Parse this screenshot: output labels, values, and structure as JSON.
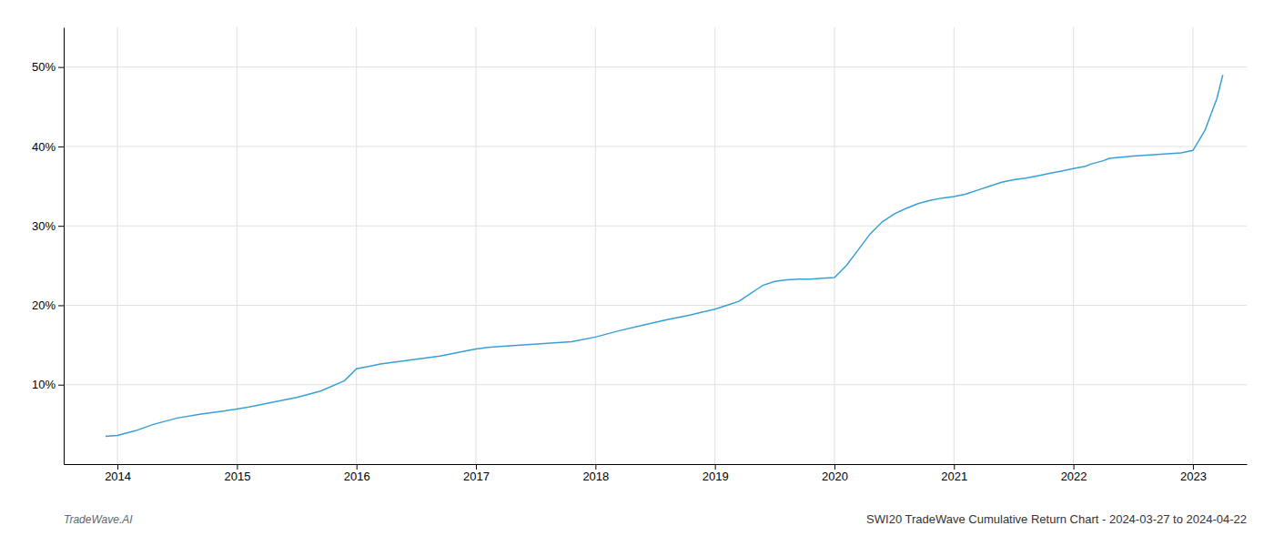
{
  "chart_data": {
    "type": "line",
    "title": "SWI20 TradeWave Cumulative Return Chart - 2024-03-27 to 2024-04-22",
    "annotations": [
      "TradeWave.AI"
    ],
    "color": "#3a9fd6",
    "x": [
      2013.9,
      2014.0,
      2014.15,
      2014.3,
      2014.5,
      2014.7,
      2014.9,
      2015.1,
      2015.3,
      2015.5,
      2015.7,
      2015.9,
      2016.0,
      2016.1,
      2016.2,
      2016.3,
      2016.5,
      2016.7,
      2016.9,
      2017.0,
      2017.1,
      2017.2,
      2017.4,
      2017.6,
      2017.8,
      2018.0,
      2018.2,
      2018.4,
      2018.6,
      2018.8,
      2019.0,
      2019.1,
      2019.2,
      2019.3,
      2019.35,
      2019.4,
      2019.5,
      2019.6,
      2019.7,
      2019.8,
      2019.9,
      2020.0,
      2020.1,
      2020.2,
      2020.3,
      2020.4,
      2020.5,
      2020.6,
      2020.7,
      2020.8,
      2020.9,
      2021.0,
      2021.1,
      2021.2,
      2021.3,
      2021.4,
      2021.5,
      2021.6,
      2021.7,
      2021.8,
      2021.9,
      2022.0,
      2022.1,
      2022.15,
      2022.2,
      2022.25,
      2022.3,
      2022.5,
      2022.7,
      2022.9,
      2023.0,
      2023.1,
      2023.2,
      2023.25
    ],
    "values": [
      3.5,
      3.6,
      4.2,
      5.0,
      5.8,
      6.3,
      6.7,
      7.2,
      7.8,
      8.4,
      9.2,
      10.5,
      12.0,
      12.3,
      12.6,
      12.8,
      13.2,
      13.6,
      14.2,
      14.5,
      14.7,
      14.8,
      15.0,
      15.2,
      15.4,
      16.0,
      16.8,
      17.5,
      18.2,
      18.8,
      19.5,
      20.0,
      20.5,
      21.5,
      22.0,
      22.5,
      23.0,
      23.2,
      23.3,
      23.3,
      23.4,
      23.5,
      25.0,
      27.0,
      29.0,
      30.5,
      31.5,
      32.2,
      32.8,
      33.2,
      33.5,
      33.7,
      34.0,
      34.5,
      35.0,
      35.5,
      35.8,
      36.0,
      36.3,
      36.6,
      36.9,
      37.2,
      37.5,
      37.8,
      38.0,
      38.2,
      38.5,
      38.8,
      39.0,
      39.2,
      39.5,
      42.0,
      46.0,
      49.0
    ],
    "xlim": [
      2013.55,
      2023.45
    ],
    "ylim": [
      0,
      55
    ],
    "xticks": [
      2014,
      2015,
      2016,
      2017,
      2018,
      2019,
      2020,
      2021,
      2022,
      2023
    ],
    "yticks": [
      {
        "value": 10,
        "label": "10%"
      },
      {
        "value": 20,
        "label": "20%"
      },
      {
        "value": 30,
        "label": "30%"
      },
      {
        "value": 40,
        "label": "40%"
      },
      {
        "value": 50,
        "label": "50%"
      }
    ],
    "grid": true
  }
}
